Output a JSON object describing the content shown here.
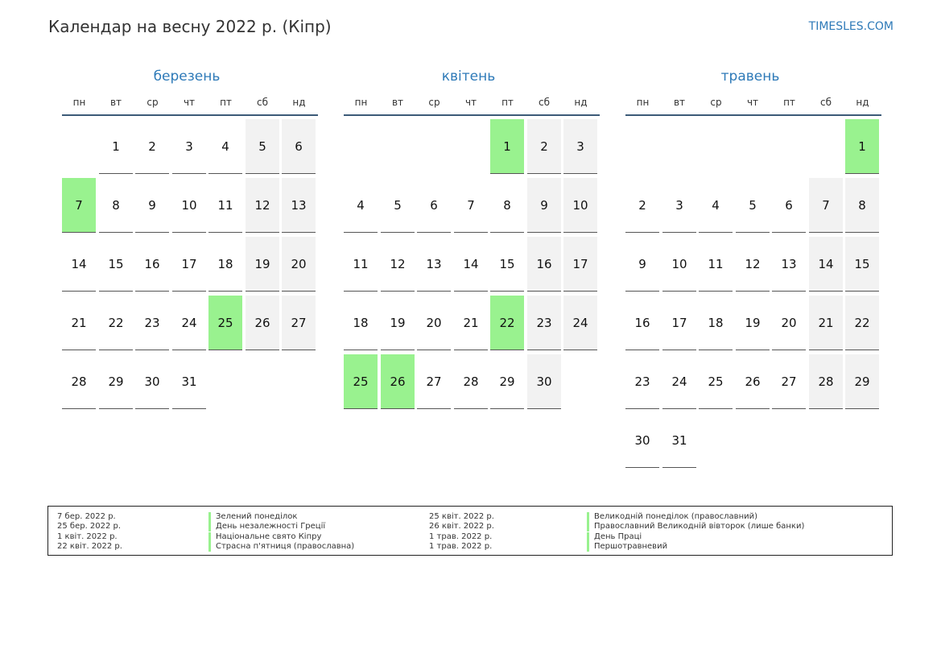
{
  "header": {
    "title": "Календар на весну 2022 р. (Кіпр)",
    "site": "TIMESLES.COM"
  },
  "weekdays": [
    "пн",
    "вт",
    "ср",
    "чт",
    "пт",
    "сб",
    "нд"
  ],
  "colors": {
    "holiday": "#99f28f",
    "weekend": "#f2f2f2",
    "accent": "#2e7ab8"
  },
  "months": [
    {
      "name": "березень",
      "start_weekday": 1,
      "days": 31,
      "holidays": [
        7,
        25
      ]
    },
    {
      "name": "квітень",
      "start_weekday": 4,
      "days": 30,
      "holidays": [
        1,
        22,
        25,
        26
      ]
    },
    {
      "name": "травень",
      "start_weekday": 6,
      "days": 31,
      "holidays": [
        1
      ]
    }
  ],
  "legend": [
    {
      "date": "7 бер. 2022 р.",
      "name": "Зелений понеділок"
    },
    {
      "date": "25 бер. 2022 р.",
      "name": "День незалежності Греції"
    },
    {
      "date": "1 квіт. 2022 р.",
      "name": "Національне свято Кіпру"
    },
    {
      "date": "22 квіт. 2022 р.",
      "name": "Страсна п'ятниця (православна)"
    },
    {
      "date": "25 квіт. 2022 р.",
      "name": "Великодній понеділок (православний)"
    },
    {
      "date": "26 квіт. 2022 р.",
      "name": "Православний Великодній вівторок (лише банки)"
    },
    {
      "date": "1 трав. 2022 р.",
      "name": "День Праці"
    },
    {
      "date": "1 трав. 2022 р.",
      "name": "Першотравневий"
    }
  ]
}
